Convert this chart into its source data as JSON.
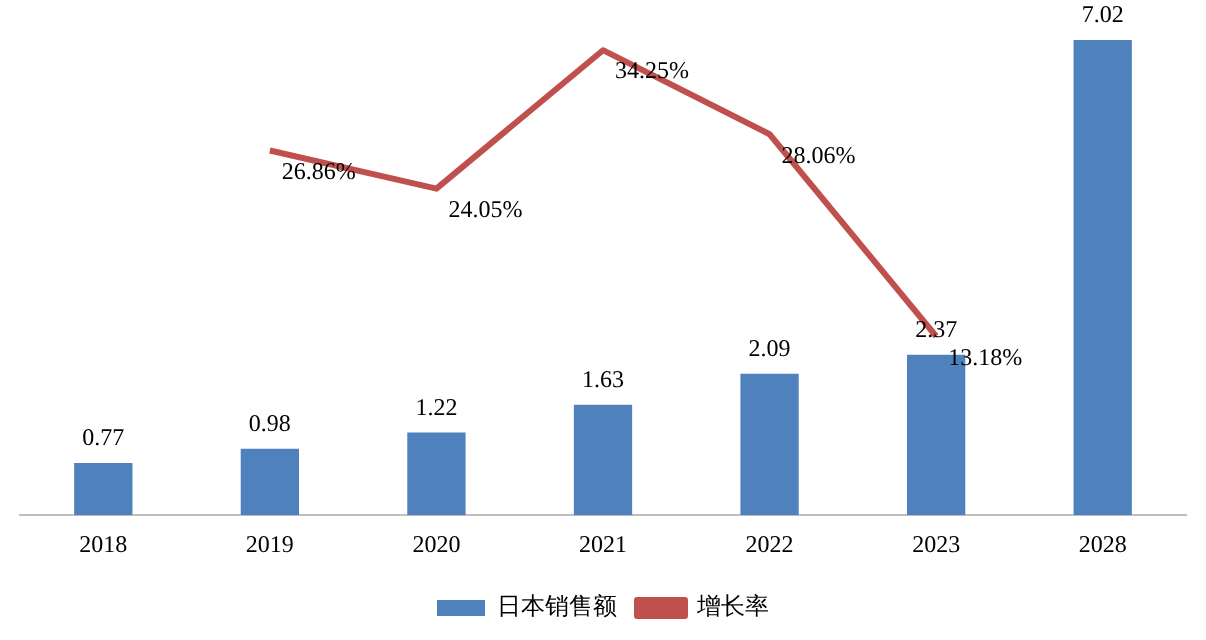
{
  "chart_data": {
    "type": "bar",
    "categories": [
      "2018",
      "2019",
      "2020",
      "2021",
      "2022",
      "2023",
      "2028"
    ],
    "series": [
      {
        "name": "日本销售额",
        "color": "#4f81bd",
        "values": [
          0.77,
          0.98,
          1.22,
          1.63,
          2.09,
          2.37,
          7.02
        ]
      },
      {
        "name": "增长率",
        "type": "line",
        "axis": "y2",
        "color": "#c0504d",
        "values": [
          null,
          26.86,
          24.05,
          34.25,
          28.06,
          13.18,
          null
        ],
        "value_labels": [
          null,
          "26.86%",
          "24.05%",
          "34.25%",
          "28.06%",
          "13.18%",
          null
        ]
      }
    ],
    "ylim": [
      0,
      7.02
    ],
    "y2lim": [
      0,
      35
    ],
    "data_labels": true,
    "grid": false,
    "legend": "bottom",
    "tick_labels": "x",
    "marker": "none",
    "line_style": "solid"
  }
}
